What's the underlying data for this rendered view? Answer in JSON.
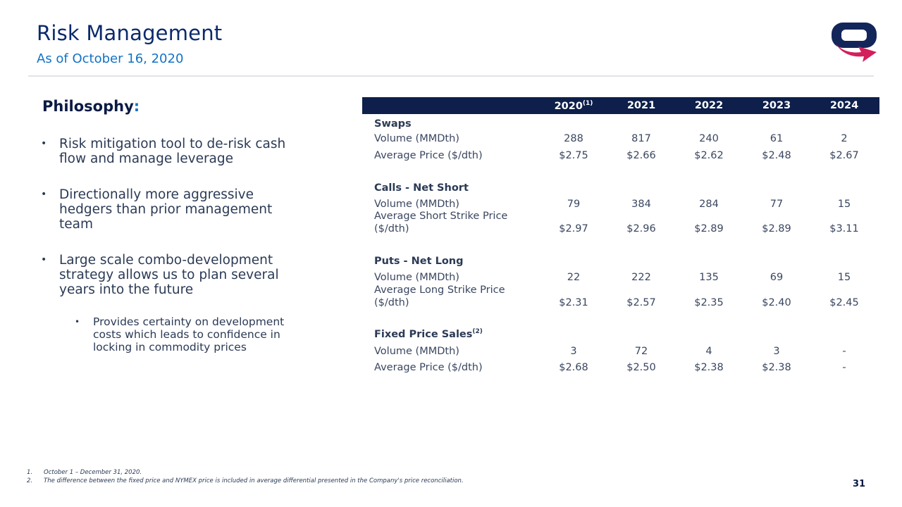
{
  "header": {
    "title": "Risk Management",
    "subtitle": "As of October 16, 2020"
  },
  "philosophy": {
    "heading": "Philosophy",
    "colon": ":",
    "bullets": [
      "Risk mitigation tool to de-risk cash flow and manage leverage",
      "Directionally more aggressive hedgers than prior management team",
      "Large scale combo-development strategy allows us to plan several years into the future"
    ],
    "sub_bullet": "Provides certainty on development costs which leads to confidence in locking in commodity prices"
  },
  "table": {
    "years": [
      "2020",
      "2021",
      "2022",
      "2023",
      "2024"
    ],
    "first_year_note": "(1)",
    "sections": [
      {
        "title": "Swaps",
        "note": "",
        "rows": [
          {
            "label": "Volume (MMDth)",
            "values": [
              "288",
              "817",
              "240",
              "61",
              "2"
            ]
          },
          {
            "label": "Average Price ($/dth)",
            "values": [
              "$2.75",
              "$2.66",
              "$2.62",
              "$2.48",
              "$2.67"
            ]
          }
        ]
      },
      {
        "title": "Calls - Net Short",
        "note": "",
        "rows": [
          {
            "label": "Volume (MMDth)",
            "values": [
              "79",
              "384",
              "284",
              "77",
              "15"
            ]
          },
          {
            "label_1": "Average Short Strike Price",
            "label_2": "($/dth)",
            "values": [
              "$2.97",
              "$2.96",
              "$2.89",
              "$2.89",
              "$3.11"
            ]
          }
        ]
      },
      {
        "title": "Puts - Net Long",
        "note": "",
        "rows": [
          {
            "label": "Volume (MMDth)",
            "values": [
              "22",
              "222",
              "135",
              "69",
              "15"
            ]
          },
          {
            "label_1": "Average Long Strike Price",
            "label_2": "($/dth)",
            "values": [
              "$2.31",
              "$2.57",
              "$2.35",
              "$2.40",
              "$2.45"
            ]
          }
        ]
      },
      {
        "title": "Fixed Price Sales",
        "note": "(2)",
        "rows": [
          {
            "label": "Volume (MMDth)",
            "values": [
              "3",
              "72",
              "4",
              "3",
              "-"
            ]
          },
          {
            "label": "Average Price ($/dth)",
            "values": [
              "$2.68",
              "$2.50",
              "$2.38",
              "$2.38",
              "-"
            ]
          }
        ]
      }
    ]
  },
  "footnotes": [
    {
      "num": "1.",
      "text": "October 1 – December 31, 2020."
    },
    {
      "num": "2.",
      "text": "The difference between the fixed price and NYMEX price is included in average differential presented in the Company's price reconciliation."
    }
  ],
  "page_number": "31",
  "colors": {
    "title": "#0b2a6b",
    "subtitle": "#1273c6",
    "table_header_bg": "#0d1f4a",
    "logo_navy": "#13265a",
    "logo_pink": "#d31f5b"
  },
  "logo_icon": "company-logo-arrow-icon"
}
